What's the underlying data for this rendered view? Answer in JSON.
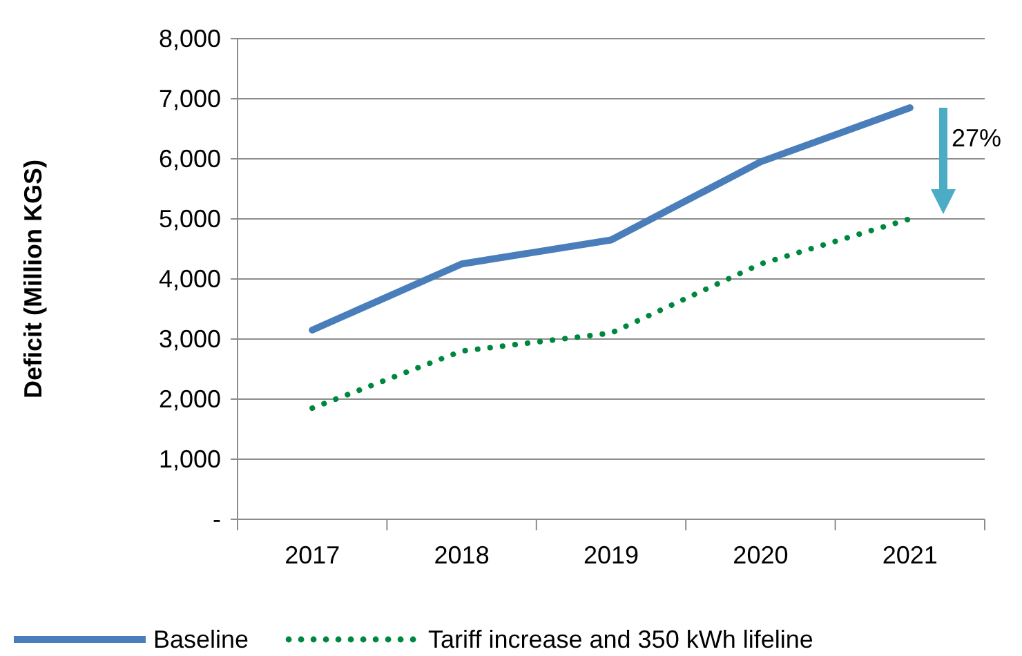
{
  "chart_data": {
    "type": "line",
    "ylabel": "Deficit (Million KGS)",
    "categories": [
      "2017",
      "2018",
      "2019",
      "2020",
      "2021"
    ],
    "series": [
      {
        "name": "Baseline",
        "color": "#4a7ebb",
        "values": [
          3150,
          4250,
          4650,
          5950,
          6850
        ],
        "line_style": "solid"
      },
      {
        "name": "Tariff increase and 350 kWh lifeline",
        "color": "#00873e",
        "values": [
          1850,
          2800,
          3100,
          4250,
          5000
        ],
        "line_style": "dotted"
      }
    ],
    "ylim": [
      0,
      8000
    ],
    "yticks": [
      {
        "value": 0,
        "label": "-"
      },
      {
        "value": 1000,
        "label": "1,000"
      },
      {
        "value": 2000,
        "label": "2,000"
      },
      {
        "value": 3000,
        "label": "3,000"
      },
      {
        "value": 4000,
        "label": "4,000"
      },
      {
        "value": 5000,
        "label": "5,000"
      },
      {
        "value": 6000,
        "label": "6,000"
      },
      {
        "value": 7000,
        "label": "7,000"
      },
      {
        "value": 8000,
        "label": "8,000"
      }
    ],
    "grid": "y",
    "legend": "bottom",
    "marker": "none",
    "annotations": [
      "27%"
    ]
  }
}
